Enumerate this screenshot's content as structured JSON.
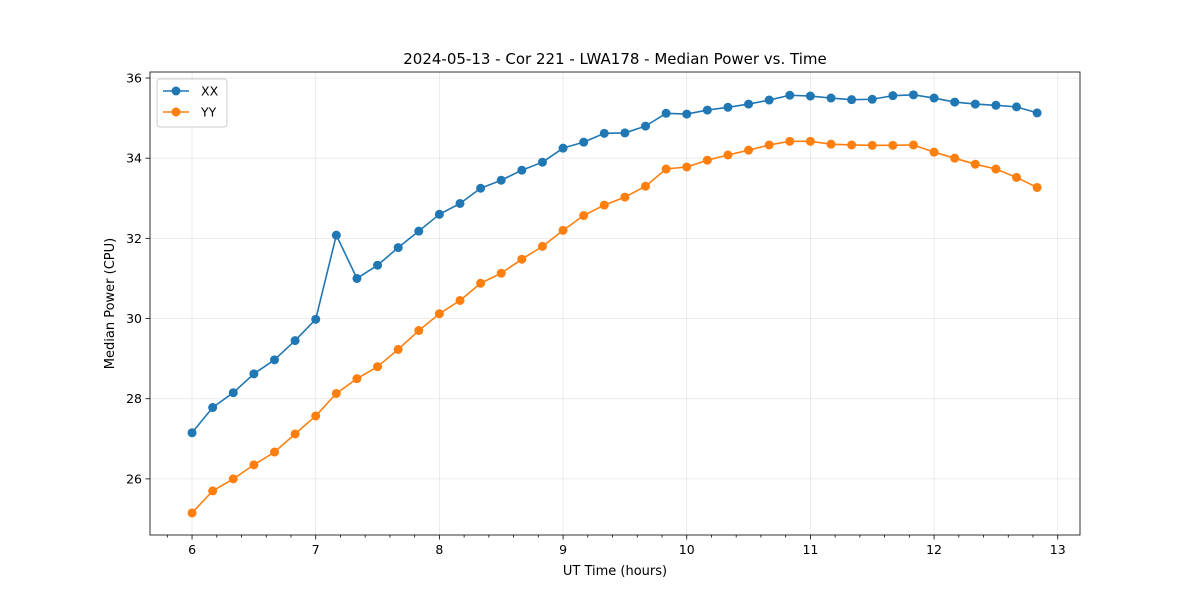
{
  "chart_data": {
    "type": "line",
    "title": "2024-05-13 - Cor 221 - LWA178 - Median Power vs. Time",
    "xlabel": "UT Time (hours)",
    "ylabel": "Median Power (CPU)",
    "xlim": [
      5.66,
      13.18
    ],
    "ylim": [
      24.6,
      36.15
    ],
    "x_ticks": [
      6,
      7,
      8,
      9,
      10,
      11,
      12,
      13
    ],
    "y_ticks": [
      26,
      28,
      30,
      32,
      34,
      36
    ],
    "x_minor_step": 0.2,
    "grid": true,
    "legend_position": "top-left",
    "x": [
      6.0,
      6.1667,
      6.3333,
      6.5,
      6.6667,
      6.8333,
      7.0,
      7.1667,
      7.3333,
      7.5,
      7.6667,
      7.8333,
      8.0,
      8.1667,
      8.3333,
      8.5,
      8.6667,
      8.8333,
      9.0,
      9.1667,
      9.3333,
      9.5,
      9.6667,
      9.8333,
      10.0,
      10.1667,
      10.3333,
      10.5,
      10.6667,
      10.8333,
      11.0,
      11.1667,
      11.3333,
      11.5,
      11.6667,
      11.8333,
      12.0,
      12.1667,
      12.3333,
      12.5,
      12.6667,
      12.8333
    ],
    "series": [
      {
        "name": "XX",
        "color": "#1f77b4",
        "values": [
          27.15,
          27.78,
          28.15,
          28.62,
          28.97,
          29.45,
          29.98,
          32.08,
          31.0,
          31.33,
          31.77,
          32.18,
          32.6,
          32.87,
          33.25,
          33.45,
          33.7,
          33.9,
          34.25,
          34.4,
          34.62,
          34.63,
          34.8,
          35.12,
          35.1,
          35.2,
          35.27,
          35.35,
          35.45,
          35.57,
          35.55,
          35.5,
          35.46,
          35.47,
          35.56,
          35.58,
          35.5,
          35.4,
          35.35,
          35.32,
          35.28,
          35.13
        ]
      },
      {
        "name": "YY",
        "color": "#ff7f0e",
        "values": [
          25.15,
          25.7,
          26.0,
          26.35,
          26.67,
          27.12,
          27.57,
          28.13,
          28.5,
          28.8,
          29.23,
          29.7,
          30.12,
          30.45,
          30.88,
          31.13,
          31.48,
          31.8,
          32.2,
          32.57,
          32.83,
          33.03,
          33.3,
          33.73,
          33.78,
          33.95,
          34.08,
          34.2,
          34.33,
          34.42,
          34.42,
          34.35,
          34.33,
          34.32,
          34.32,
          34.33,
          34.15,
          34.0,
          33.85,
          33.73,
          33.52,
          33.27
        ]
      }
    ]
  }
}
